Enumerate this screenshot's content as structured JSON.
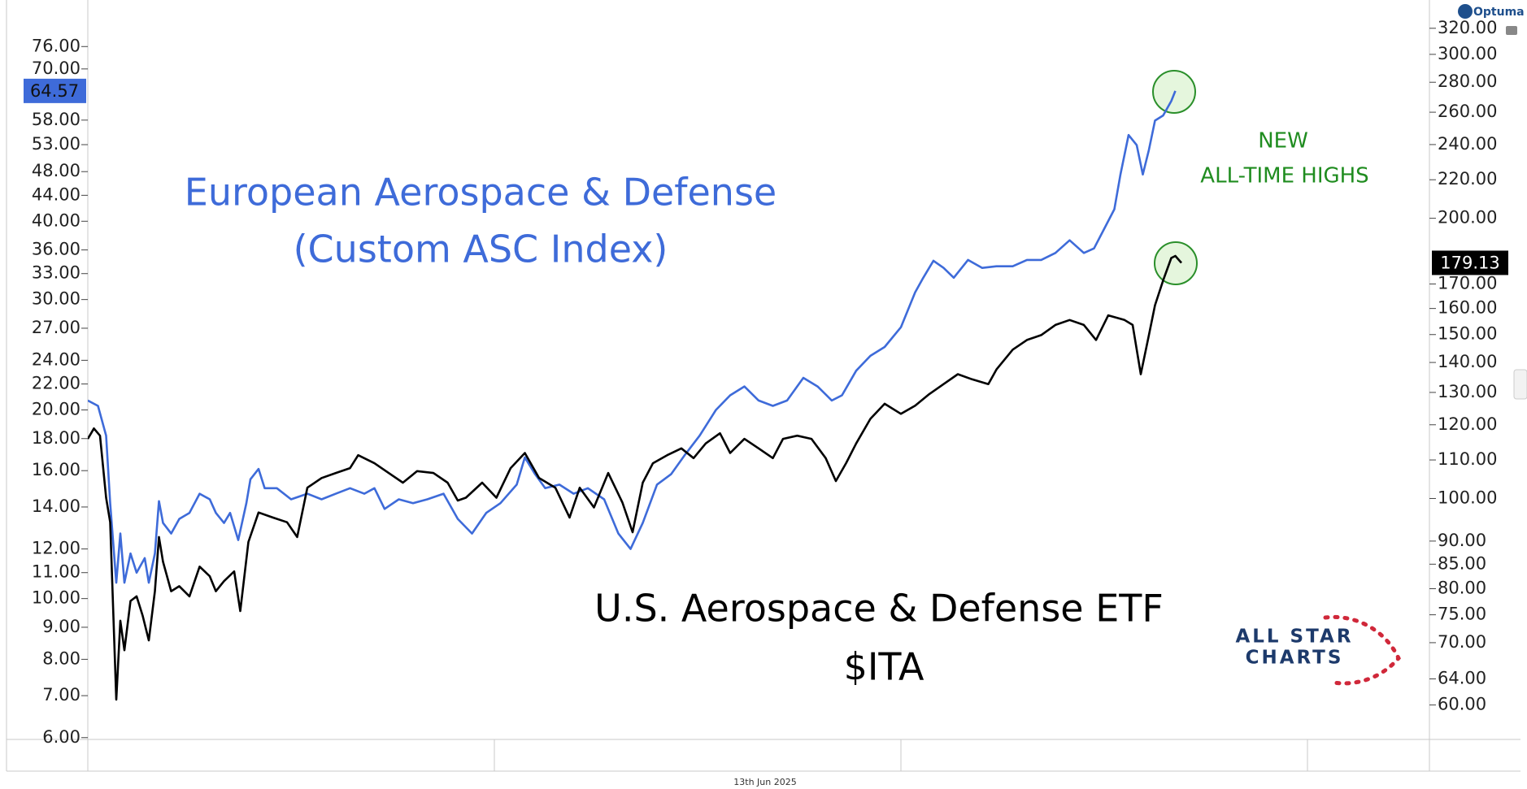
{
  "chart_data": {
    "type": "line",
    "xlim": [
      2020,
      2026.6
    ],
    "xticks": [
      2020,
      2022,
      2024,
      2026
    ],
    "ylog": true,
    "ylim": [
      5.96,
      87
    ],
    "yticks": [
      {
        "value": 6,
        "label": "6.00"
      },
      {
        "value": 7,
        "label": "7.00"
      },
      {
        "value": 8,
        "label": "8.00"
      },
      {
        "value": 9,
        "label": "9.00"
      },
      {
        "value": 10,
        "label": "10.00"
      },
      {
        "value": 11,
        "label": "11.00"
      },
      {
        "value": 12,
        "label": "12.00"
      },
      {
        "value": 14,
        "label": "14.00"
      },
      {
        "value": 16,
        "label": "16.00"
      },
      {
        "value": 18,
        "label": "18.00"
      },
      {
        "value": 20,
        "label": "20.00"
      },
      {
        "value": 22,
        "label": "22.00"
      },
      {
        "value": 24,
        "label": "24.00"
      },
      {
        "value": 27,
        "label": "27.00"
      },
      {
        "value": 30,
        "label": "30.00"
      },
      {
        "value": 33,
        "label": "33.00"
      },
      {
        "value": 36,
        "label": "36.00"
      },
      {
        "value": 40,
        "label": "40.00"
      },
      {
        "value": 44,
        "label": "44.00"
      },
      {
        "value": 48,
        "label": "48.00"
      },
      {
        "value": 53,
        "label": "53.00"
      },
      {
        "value": 58,
        "label": "58.00"
      },
      {
        "value": 70,
        "label": "70.00"
      },
      {
        "value": 76,
        "label": "76.00"
      }
    ],
    "y2log": true,
    "y2lim": [
      55.1,
      335
    ],
    "y2ticks": [
      {
        "value": 60,
        "label": "60.00"
      },
      {
        "value": 64,
        "label": "64.00"
      },
      {
        "value": 70,
        "label": "70.00"
      },
      {
        "value": 75,
        "label": "75.00"
      },
      {
        "value": 80,
        "label": "80.00"
      },
      {
        "value": 85,
        "label": "85.00"
      },
      {
        "value": 90,
        "label": "90.00"
      },
      {
        "value": 100,
        "label": "100.00"
      },
      {
        "value": 110,
        "label": "110.00"
      },
      {
        "value": 120,
        "label": "120.00"
      },
      {
        "value": 130,
        "label": "130.00"
      },
      {
        "value": 140,
        "label": "140.00"
      },
      {
        "value": 150,
        "label": "150.00"
      },
      {
        "value": 160,
        "label": "160.00"
      },
      {
        "value": 170,
        "label": "170.00"
      },
      {
        "value": 200,
        "label": "200.00"
      },
      {
        "value": 220,
        "label": "220.00"
      },
      {
        "value": 240,
        "label": "240.00"
      },
      {
        "value": 260,
        "label": "260.00"
      },
      {
        "value": 280,
        "label": "280.00"
      },
      {
        "value": 300,
        "label": "300.00"
      },
      {
        "value": 320,
        "label": "320.00"
      }
    ],
    "series": [
      {
        "color": "#3e6bd9",
        "axis": "y",
        "x": [
          2020.0,
          2020.05,
          2020.09,
          2020.11,
          2020.14,
          2020.16,
          2020.18,
          2020.21,
          2020.24,
          2020.28,
          2020.3,
          2020.33,
          2020.35,
          2020.37,
          2020.41,
          2020.45,
          2020.5,
          2020.55,
          2020.6,
          2020.63,
          2020.67,
          2020.7,
          2020.74,
          2020.78,
          2020.8,
          2020.84,
          2020.87,
          2020.93,
          2021.0,
          2021.08,
          2021.15,
          2021.22,
          2021.29,
          2021.36,
          2021.41,
          2021.46,
          2021.53,
          2021.6,
          2021.67,
          2021.75,
          2021.82,
          2021.89,
          2021.96,
          2022.03,
          2022.11,
          2022.15,
          2022.2,
          2022.25,
          2022.32,
          2022.39,
          2022.46,
          2022.54,
          2022.61,
          2022.67,
          2022.73,
          2022.8,
          2022.87,
          2022.94,
          2023.01,
          2023.09,
          2023.16,
          2023.23,
          2023.3,
          2023.37,
          2023.44,
          2023.52,
          2023.59,
          2023.66,
          2023.71,
          2023.78,
          2023.85,
          2023.92,
          2024.0,
          2024.07,
          2024.11,
          2024.16,
          2024.21,
          2024.26,
          2024.33,
          2024.4,
          2024.47,
          2024.55,
          2024.62,
          2024.69,
          2024.76,
          2024.83,
          2024.9,
          2024.95,
          2025.0,
          2025.05,
          2025.08,
          2025.12,
          2025.16,
          2025.19,
          2025.22,
          2025.25,
          2025.29,
          2025.33,
          2025.35
        ],
        "values": [
          20.7,
          20.3,
          18.2,
          14.2,
          10.6,
          12.7,
          10.6,
          11.8,
          11.0,
          11.6,
          10.6,
          11.8,
          14.3,
          13.2,
          12.7,
          13.4,
          13.7,
          14.7,
          14.4,
          13.7,
          13.2,
          13.7,
          12.4,
          14.2,
          15.5,
          16.1,
          15.0,
          15.0,
          14.4,
          14.7,
          14.4,
          14.7,
          15.0,
          14.7,
          15.0,
          13.9,
          14.4,
          14.2,
          14.4,
          14.7,
          13.4,
          12.7,
          13.7,
          14.2,
          15.2,
          16.8,
          15.8,
          15.0,
          15.2,
          14.7,
          15.0,
          14.4,
          12.7,
          12.0,
          13.2,
          15.2,
          15.8,
          17.0,
          18.2,
          20.0,
          21.1,
          21.8,
          20.7,
          20.3,
          20.7,
          22.5,
          21.8,
          20.7,
          21.1,
          23.1,
          24.4,
          25.2,
          27.1,
          30.8,
          32.5,
          34.6,
          33.7,
          32.5,
          34.7,
          33.7,
          33.9,
          33.9,
          34.7,
          34.7,
          35.6,
          37.3,
          35.6,
          36.2,
          38.9,
          41.8,
          47.5,
          54.9,
          52.9,
          47.5,
          52.0,
          57.9,
          59.0,
          62.2,
          64.57
        ]
      },
      {
        "color": "#000000",
        "axis": "y2",
        "x": [
          2020.0,
          2020.03,
          2020.06,
          2020.09,
          2020.11,
          2020.14,
          2020.16,
          2020.18,
          2020.21,
          2020.24,
          2020.27,
          2020.3,
          2020.33,
          2020.35,
          2020.37,
          2020.41,
          2020.45,
          2020.5,
          2020.55,
          2020.6,
          2020.63,
          2020.67,
          2020.72,
          2020.75,
          2020.79,
          2020.84,
          2020.91,
          2020.98,
          2021.03,
          2021.08,
          2021.15,
          2021.22,
          2021.29,
          2021.33,
          2021.41,
          2021.48,
          2021.55,
          2021.62,
          2021.7,
          2021.77,
          2021.82,
          2021.86,
          2021.94,
          2022.01,
          2022.08,
          2022.15,
          2022.22,
          2022.3,
          2022.37,
          2022.42,
          2022.49,
          2022.56,
          2022.63,
          2022.68,
          2022.73,
          2022.78,
          2022.85,
          2022.92,
          2022.98,
          2023.04,
          2023.11,
          2023.16,
          2023.23,
          2023.3,
          2023.37,
          2023.42,
          2023.49,
          2023.56,
          2023.63,
          2023.68,
          2023.73,
          2023.78,
          2023.85,
          2023.92,
          2024.0,
          2024.07,
          2024.14,
          2024.21,
          2024.28,
          2024.35,
          2024.43,
          2024.47,
          2024.55,
          2024.62,
          2024.69,
          2024.76,
          2024.83,
          2024.9,
          2024.96,
          2025.02,
          2025.1,
          2025.14,
          2025.18,
          2025.22,
          2025.25,
          2025.29,
          2025.33,
          2025.35,
          2025.38
        ],
        "values": [
          115.9,
          118.9,
          116.8,
          100.2,
          94.3,
          60.8,
          73.9,
          68.7,
          77.6,
          78.5,
          74.8,
          70.4,
          79.5,
          90.9,
          85.5,
          79.5,
          80.5,
          78.5,
          84.5,
          82.5,
          79.5,
          81.5,
          83.5,
          75.7,
          89.8,
          96.6,
          95.4,
          94.3,
          90.9,
          102.7,
          105.2,
          106.5,
          107.8,
          111.3,
          109.1,
          106.5,
          104.0,
          107.0,
          106.5,
          104.0,
          99.5,
          100.2,
          104.0,
          100.2,
          107.8,
          111.9,
          105.2,
          102.7,
          95.4,
          102.7,
          97.8,
          106.5,
          99.0,
          92.0,
          104.0,
          109.1,
          111.3,
          113.2,
          110.5,
          114.6,
          117.5,
          111.9,
          115.9,
          113.2,
          110.5,
          115.9,
          116.8,
          115.9,
          110.5,
          104.4,
          109.1,
          114.6,
          121.8,
          126.4,
          123.3,
          125.8,
          129.5,
          132.7,
          136.0,
          134.3,
          132.7,
          137.6,
          144.5,
          148.0,
          149.8,
          153.6,
          155.5,
          153.6,
          148.0,
          157.3,
          155.5,
          153.6,
          136.0,
          149.8,
          161.3,
          171.5,
          181.3,
          182.2,
          179.13
        ]
      }
    ],
    "annotations": [
      {
        "text": "European Aerospace & Defense",
        "color": "#3e6bd9"
      },
      {
        "text": "(Custom ASC Index)",
        "color": "#3e6bd9"
      },
      {
        "text": "U.S. Aerospace & Defense ETF",
        "color": "#000000"
      },
      {
        "text": "$ITA",
        "color": "#000000"
      },
      {
        "text": "NEW",
        "color": "#1f8c1f"
      },
      {
        "text": "ALL-TIME HIGHS",
        "color": "#1f8c1f"
      }
    ],
    "date_label": "13th Jun 2025",
    "brand": "Optuma",
    "logo": [
      "ALL STAR",
      "CHARTS"
    ]
  }
}
